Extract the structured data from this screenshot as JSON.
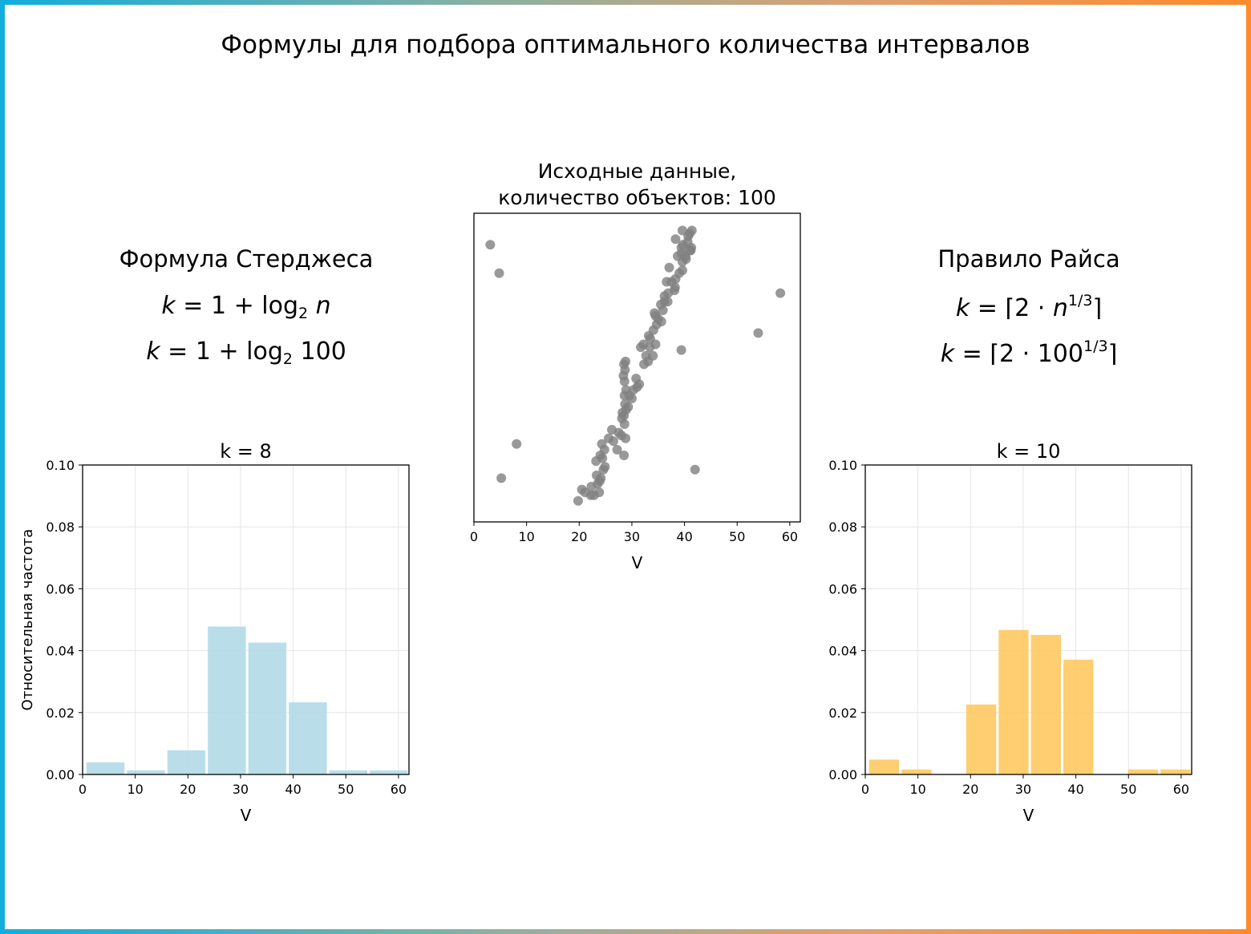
{
  "page": {
    "title": "Формулы для подбора оптимального количества интервалов",
    "border_gradient": [
      "#10aedb",
      "#ff8a2a"
    ]
  },
  "left_panel": {
    "heading": "Формула Стерджеса",
    "formula_general": {
      "lhs": "k",
      "eq": "=",
      "one": "1",
      "plus": "+",
      "log": "log",
      "base": "2",
      "arg": "n"
    },
    "formula_value": {
      "lhs": "k",
      "eq": "=",
      "one": "1",
      "plus": "+",
      "log": "log",
      "base": "2",
      "arg": "100"
    }
  },
  "right_panel": {
    "heading": "Правило Райса",
    "formula_general": {
      "lhs": "k",
      "eq": "=",
      "open": "⌈2 · ",
      "base": "n",
      "exp": "1/3",
      "close": "⌉"
    },
    "formula_value": {
      "lhs": "k",
      "eq": "=",
      "open": "⌈2 · ",
      "base": "100",
      "exp": "1/3",
      "close": "⌉"
    }
  },
  "chart_data": [
    {
      "type": "scatter",
      "title": "Исходные данные,\nколичество объектов: 100",
      "title_lines": [
        "Исходные данные,",
        "количество объектов: 100"
      ],
      "xlabel": "V",
      "ylabel": "",
      "xlim": [
        0,
        62
      ],
      "xticks": [
        0,
        10,
        20,
        30,
        40,
        50,
        60
      ],
      "y_axis_hidden": true,
      "ylim": [
        0,
        1
      ],
      "color": "#808080",
      "points": [
        [
          3.1,
          0.94
        ],
        [
          4.8,
          0.84
        ],
        [
          8.1,
          0.24
        ],
        [
          5.2,
          0.12
        ],
        [
          58.2,
          0.77
        ],
        [
          54.0,
          0.63
        ],
        [
          42.0,
          0.15
        ],
        [
          39.4,
          0.57
        ],
        [
          19.8,
          0.04
        ],
        [
          20.5,
          0.08
        ],
        [
          21.1,
          0.07
        ],
        [
          22.2,
          0.06
        ],
        [
          22.8,
          0.06
        ],
        [
          22.3,
          0.09
        ],
        [
          23.8,
          0.07
        ],
        [
          23.5,
          0.1
        ],
        [
          23.9,
          0.11
        ],
        [
          23.3,
          0.13
        ],
        [
          24.1,
          0.12
        ],
        [
          24.6,
          0.15
        ],
        [
          24.9,
          0.16
        ],
        [
          23.2,
          0.18
        ],
        [
          24.0,
          0.2
        ],
        [
          24.4,
          0.19
        ],
        [
          24.3,
          0.24
        ],
        [
          24.8,
          0.22
        ],
        [
          25.6,
          0.26
        ],
        [
          26.5,
          0.25
        ],
        [
          27.2,
          0.22
        ],
        [
          28.5,
          0.2
        ],
        [
          26.2,
          0.29
        ],
        [
          27.5,
          0.28
        ],
        [
          28.0,
          0.27
        ],
        [
          28.8,
          0.26
        ],
        [
          28.6,
          0.31
        ],
        [
          28.1,
          0.33
        ],
        [
          28.2,
          0.35
        ],
        [
          28.5,
          0.34
        ],
        [
          28.9,
          0.36
        ],
        [
          29.3,
          0.37
        ],
        [
          28.7,
          0.38
        ],
        [
          28.6,
          0.41
        ],
        [
          29.5,
          0.41
        ],
        [
          28.9,
          0.43
        ],
        [
          30.3,
          0.43
        ],
        [
          31.0,
          0.44
        ],
        [
          31.4,
          0.45
        ],
        [
          30.8,
          0.47
        ],
        [
          28.4,
          0.48
        ],
        [
          28.7,
          0.5
        ],
        [
          28.5,
          0.52
        ],
        [
          28.8,
          0.53
        ],
        [
          28.6,
          0.46
        ],
        [
          30.0,
          0.4
        ],
        [
          32.3,
          0.52
        ],
        [
          33.1,
          0.53
        ],
        [
          32.7,
          0.55
        ],
        [
          34.0,
          0.55
        ],
        [
          31.7,
          0.58
        ],
        [
          32.2,
          0.59
        ],
        [
          33.4,
          0.58
        ],
        [
          34.5,
          0.59
        ],
        [
          33.5,
          0.61
        ],
        [
          33.2,
          0.62
        ],
        [
          34.1,
          0.64
        ],
        [
          34.7,
          0.66
        ],
        [
          35.6,
          0.67
        ],
        [
          35.0,
          0.68
        ],
        [
          34.5,
          0.69
        ],
        [
          34.3,
          0.7
        ],
        [
          35.9,
          0.71
        ],
        [
          35.5,
          0.73
        ],
        [
          36.2,
          0.74
        ],
        [
          36.8,
          0.74
        ],
        [
          36.2,
          0.76
        ],
        [
          36.9,
          0.77
        ],
        [
          38.1,
          0.78
        ],
        [
          38.2,
          0.79
        ],
        [
          36.6,
          0.81
        ],
        [
          37.5,
          0.81
        ],
        [
          38.3,
          0.82
        ],
        [
          39.0,
          0.84
        ],
        [
          39.6,
          0.85
        ],
        [
          37.1,
          0.86
        ],
        [
          39.6,
          0.88
        ],
        [
          40.3,
          0.89
        ],
        [
          38.7,
          0.9
        ],
        [
          39.4,
          0.91
        ],
        [
          40.2,
          0.9
        ],
        [
          41.0,
          0.92
        ],
        [
          39.4,
          0.93
        ],
        [
          41.2,
          0.92
        ],
        [
          38.3,
          0.96
        ],
        [
          39.7,
          0.94
        ],
        [
          41.3,
          0.93
        ],
        [
          40.6,
          0.95
        ],
        [
          39.6,
          0.99
        ],
        [
          40.7,
          0.97
        ],
        [
          41.4,
          0.99
        ],
        [
          41.0,
          0.98
        ]
      ]
    },
    {
      "type": "bar",
      "title": "k = 8",
      "xlabel": "V",
      "ylabel": "Относительная частота",
      "xlim": [
        0,
        62
      ],
      "ylim": [
        0,
        0.1
      ],
      "xticks": [
        0,
        10,
        20,
        30,
        40,
        50,
        60
      ],
      "yticks": [
        "0.00",
        "0.02",
        "0.04",
        "0.06",
        "0.08",
        "0.10"
      ],
      "grid": true,
      "color": "#add8e6",
      "bin_edges": [
        0.5,
        8.19,
        15.88,
        23.56,
        31.25,
        38.94,
        46.63,
        54.31,
        62.0
      ],
      "values": [
        0.0039,
        0.0013,
        0.0078,
        0.0478,
        0.0426,
        0.0233,
        0.0013,
        0.0013
      ]
    },
    {
      "type": "bar",
      "title": "k = 10",
      "xlabel": "V",
      "ylabel": "",
      "xlim": [
        0,
        62
      ],
      "ylim": [
        0,
        0.1
      ],
      "xticks": [
        0,
        10,
        20,
        30,
        40,
        50,
        60
      ],
      "yticks": [
        "0.00",
        "0.02",
        "0.04",
        "0.06",
        "0.08",
        "0.10"
      ],
      "grid": true,
      "color": "#ffc658",
      "bin_edges": [
        0.5,
        6.65,
        12.8,
        18.95,
        25.1,
        31.25,
        37.4,
        43.55,
        49.7,
        55.85,
        62.0
      ],
      "values": [
        0.0048,
        0.0016,
        0.0,
        0.0226,
        0.0467,
        0.0451,
        0.0371,
        0.0,
        0.0016,
        0.0016
      ]
    }
  ]
}
